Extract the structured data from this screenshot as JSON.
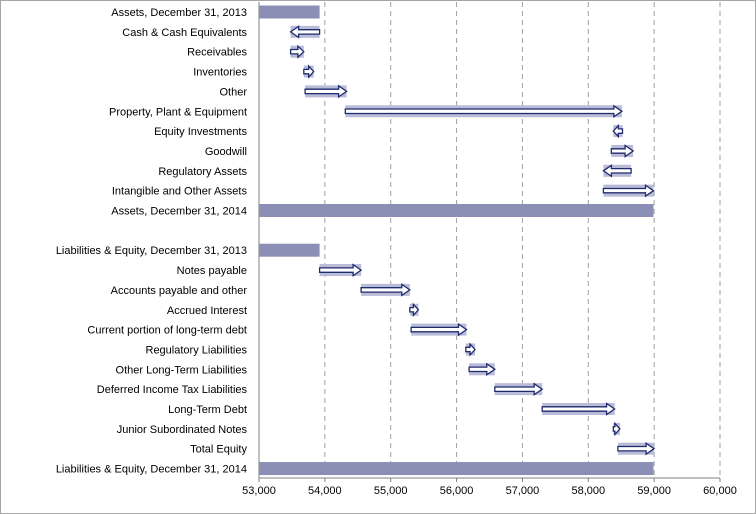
{
  "chart_data": {
    "type": "bar",
    "subtype": "waterfall",
    "title": "",
    "xlabel": "",
    "ylabel": "",
    "xlim": [
      53000,
      60000
    ],
    "x_ticks": [
      53000,
      54000,
      55000,
      56000,
      57000,
      58000,
      59000,
      60000
    ],
    "x_tick_labels": [
      "53,000",
      "54,000",
      "55,000",
      "56,000",
      "57,000",
      "58,000",
      "59,000",
      "60,000"
    ],
    "grid": "vertical dashed",
    "colors": {
      "total_bar": "#8b8fb5",
      "change_fill": "#b9bbd9",
      "arrow_stroke": "#1f2a6b",
      "grid": "#a0a0a0"
    },
    "rows": [
      {
        "label": "Assets,  December 31, 2013",
        "kind": "total",
        "start": 53000,
        "end": 53920
      },
      {
        "label": "Cash & Cash Equivalents",
        "kind": "change",
        "start": 53920,
        "end": 53480
      },
      {
        "label": "Receivables",
        "kind": "change",
        "start": 53480,
        "end": 53680
      },
      {
        "label": "Inventories",
        "kind": "change",
        "start": 53680,
        "end": 53830
      },
      {
        "label": "Other",
        "kind": "change",
        "start": 53700,
        "end": 54330
      },
      {
        "label": "Property, Plant & Equipment",
        "kind": "change",
        "start": 54310,
        "end": 58510
      },
      {
        "label": "Equity Investments",
        "kind": "change",
        "start": 58520,
        "end": 58380
      },
      {
        "label": "Goodwill",
        "kind": "change",
        "start": 58350,
        "end": 58680
      },
      {
        "label": "Regulatory Assets",
        "kind": "change",
        "start": 58650,
        "end": 58230
      },
      {
        "label": "Intangible and Other Assets",
        "kind": "change",
        "start": 58230,
        "end": 58990
      },
      {
        "label": "Assets,  December 31, 2014",
        "kind": "total",
        "start": 53000,
        "end": 58990
      },
      {
        "label": "",
        "kind": "gap"
      },
      {
        "label": "Liabilities & Equity, December 31, 2013",
        "kind": "total",
        "start": 53000,
        "end": 53920
      },
      {
        "label": "Notes payable",
        "kind": "change",
        "start": 53920,
        "end": 54550
      },
      {
        "label": "Accounts payable and other",
        "kind": "change",
        "start": 54550,
        "end": 55290
      },
      {
        "label": "Accrued Interest",
        "kind": "change",
        "start": 55290,
        "end": 55420
      },
      {
        "label": "Current portion of long-term debt",
        "kind": "change",
        "start": 55310,
        "end": 56150
      },
      {
        "label": "Regulatory Liabilities",
        "kind": "change",
        "start": 56140,
        "end": 56280
      },
      {
        "label": "Other Long-Term Liabilities",
        "kind": "change",
        "start": 56190,
        "end": 56580
      },
      {
        "label": "Deferred Income Tax Liabilities",
        "kind": "change",
        "start": 56580,
        "end": 57300
      },
      {
        "label": "Long-Term Debt",
        "kind": "change",
        "start": 57300,
        "end": 58400
      },
      {
        "label": "Junior Subordinated Notes",
        "kind": "change",
        "start": 58380,
        "end": 58480
      },
      {
        "label": "Total Equity",
        "kind": "change",
        "start": 58450,
        "end": 59000
      },
      {
        "label": "Liabilities & Equity, December 31, 2014",
        "kind": "total",
        "start": 53000,
        "end": 58990
      }
    ]
  }
}
